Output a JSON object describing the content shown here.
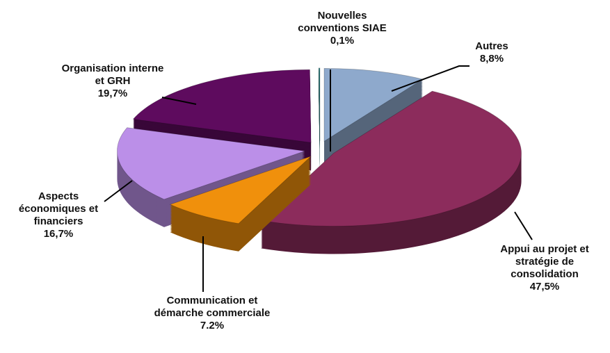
{
  "chart_data": {
    "type": "pie3d",
    "categories": [
      "Autres",
      "Appui au projet et stratégie de consolidation",
      "Communication et démarche commerciale",
      "Aspects économiques et financiers",
      "Organisation interne et GRH",
      "Nouvelles conventions SIAE"
    ],
    "values": [
      8.8,
      47.5,
      7.2,
      16.7,
      19.7,
      0.1
    ],
    "value_labels": [
      "8,8%",
      "47,5%",
      "7.2%",
      "16,7%",
      "19,7%",
      "0,1%"
    ],
    "colors": [
      "#8ea9cc",
      "#8c2c5c",
      "#f0900c",
      "#bb8fe8",
      "#5e0b5e",
      "#2f7f80"
    ]
  }
}
